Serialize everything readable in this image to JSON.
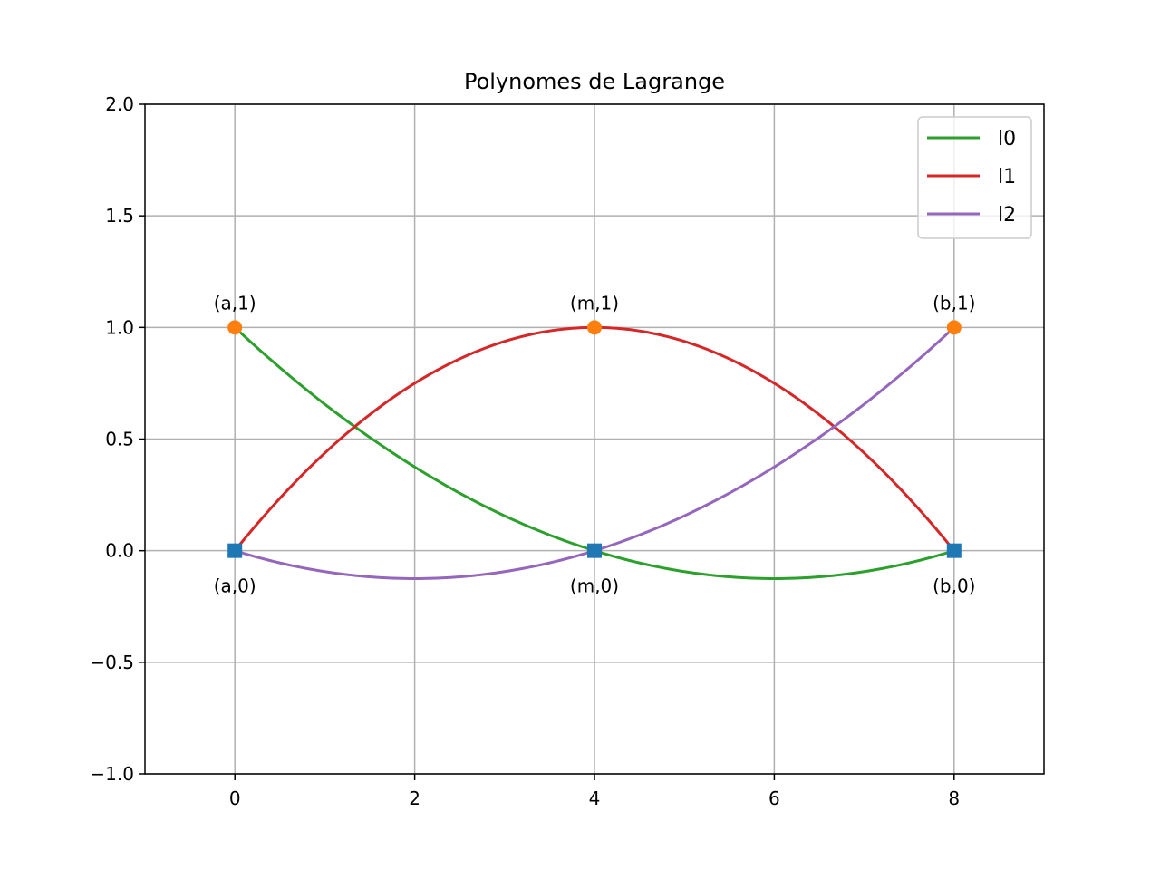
{
  "chart_data": {
    "type": "line",
    "title": "Polynomes de Lagrange",
    "xlabel": "",
    "ylabel": "",
    "xlim": [
      -1,
      9
    ],
    "ylim": [
      -1.0,
      2.0
    ],
    "grid": true,
    "legend_position": "top-right",
    "x_ticks": [
      0,
      2,
      4,
      6,
      8
    ],
    "x_tick_labels": [
      "0",
      "2",
      "4",
      "6",
      "8"
    ],
    "y_ticks": [
      -1.0,
      -0.5,
      0.0,
      0.5,
      1.0,
      1.5,
      2.0
    ],
    "y_tick_labels": [
      "−1.0",
      "−0.5",
      "0.0",
      "0.5",
      "1.0",
      "1.5",
      "2.0"
    ],
    "series": [
      {
        "name": "l0",
        "color": "#2ca02c",
        "x": [
          0,
          1,
          2,
          3,
          4,
          5,
          6,
          7,
          8
        ],
        "y": [
          1.0,
          0.65625,
          0.375,
          0.15625,
          0.0,
          -0.09375,
          -0.125,
          -0.09375,
          0.0
        ]
      },
      {
        "name": "l1",
        "color": "#d62728",
        "x": [
          0,
          1,
          2,
          3,
          4,
          5,
          6,
          7,
          8
        ],
        "y": [
          0.0,
          0.4375,
          0.75,
          0.9375,
          1.0,
          0.9375,
          0.75,
          0.4375,
          0.0
        ]
      },
      {
        "name": "l2",
        "color": "#9467bd",
        "x": [
          0,
          1,
          2,
          3,
          4,
          5,
          6,
          7,
          8
        ],
        "y": [
          0.0,
          -0.09375,
          -0.125,
          -0.09375,
          0.0,
          0.15625,
          0.375,
          0.65625,
          1.0
        ]
      }
    ],
    "markers": {
      "circles": {
        "color": "#ff7f0e",
        "x": [
          0,
          4,
          8
        ],
        "y": [
          1,
          1,
          1
        ]
      },
      "squares": {
        "color": "#1f77b4",
        "x": [
          0,
          4,
          8
        ],
        "y": [
          0,
          0,
          0
        ]
      }
    },
    "annotations": [
      {
        "text": "(a,1)",
        "x": 0,
        "y": 1,
        "placement": "above"
      },
      {
        "text": "(m,1)",
        "x": 4,
        "y": 1,
        "placement": "above"
      },
      {
        "text": "(b,1)",
        "x": 8,
        "y": 1,
        "placement": "above"
      },
      {
        "text": "(a,0)",
        "x": 0,
        "y": 0,
        "placement": "below"
      },
      {
        "text": "(m,0)",
        "x": 4,
        "y": 0,
        "placement": "below"
      },
      {
        "text": "(b,0)",
        "x": 8,
        "y": 0,
        "placement": "below"
      }
    ]
  }
}
